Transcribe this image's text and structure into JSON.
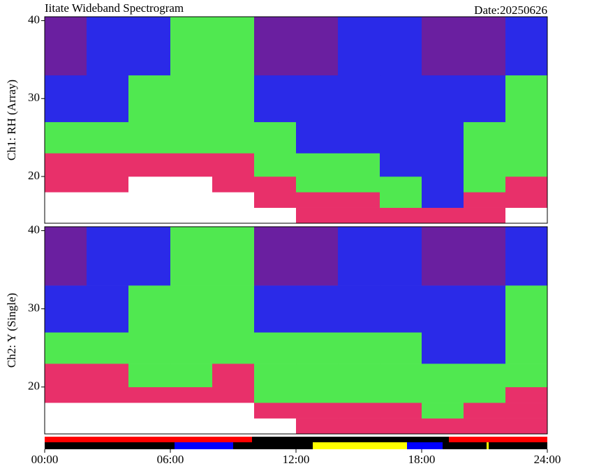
{
  "chart_data": [
    {
      "type": "heatmap",
      "title": "Iitate Wideband Spectrogram",
      "date": "Date:20250626",
      "ylabel": "Ch1: RH (Array)",
      "xlim": [
        0,
        24
      ],
      "ylim": [
        14,
        40.5
      ],
      "yticks": [
        20,
        30,
        40
      ],
      "palette": [
        "#6a1fa0",
        "#2a2ae8",
        "#50e850",
        "#e8306a",
        "#ffffff"
      ],
      "x_edges": [
        0,
        2,
        4,
        6,
        8,
        10,
        12,
        14,
        16,
        18,
        20,
        22,
        24
      ],
      "y_edges": [
        14,
        16,
        18,
        20,
        23,
        27,
        33,
        40.5
      ],
      "levels": [
        [
          4,
          4,
          4,
          4,
          4,
          4,
          3,
          3,
          3,
          3,
          3,
          4
        ],
        [
          4,
          4,
          4,
          4,
          4,
          3,
          3,
          3,
          2,
          1,
          3,
          3
        ],
        [
          3,
          3,
          4,
          4,
          3,
          3,
          2,
          2,
          2,
          1,
          2,
          3
        ],
        [
          3,
          3,
          3,
          3,
          3,
          2,
          2,
          2,
          1,
          1,
          2,
          2
        ],
        [
          2,
          2,
          2,
          2,
          2,
          2,
          1,
          1,
          1,
          1,
          2,
          2
        ],
        [
          1,
          1,
          2,
          2,
          2,
          1,
          1,
          1,
          1,
          1,
          1,
          2
        ],
        [
          0,
          1,
          1,
          2,
          2,
          0,
          0,
          1,
          1,
          0,
          0,
          1
        ]
      ]
    },
    {
      "type": "heatmap",
      "ylabel": "Ch2: Y (Single)",
      "xlim": [
        0,
        24
      ],
      "ylim": [
        14,
        40.5
      ],
      "yticks": [
        20,
        30,
        40
      ],
      "palette": [
        "#6a1fa0",
        "#2a2ae8",
        "#50e850",
        "#e8306a",
        "#ffffff"
      ],
      "x_edges": [
        0,
        2,
        4,
        6,
        8,
        10,
        12,
        14,
        16,
        18,
        20,
        22,
        24
      ],
      "y_edges": [
        14,
        16,
        18,
        20,
        23,
        27,
        33,
        40.5
      ],
      "levels": [
        [
          4,
          4,
          4,
          4,
          4,
          4,
          3,
          3,
          3,
          3,
          3,
          3
        ],
        [
          4,
          4,
          4,
          4,
          4,
          3,
          3,
          3,
          3,
          2,
          3,
          3
        ],
        [
          3,
          3,
          3,
          3,
          3,
          2,
          2,
          2,
          2,
          2,
          2,
          3
        ],
        [
          3,
          3,
          2,
          2,
          3,
          2,
          2,
          2,
          2,
          2,
          2,
          2
        ],
        [
          2,
          2,
          2,
          2,
          2,
          2,
          2,
          2,
          2,
          1,
          1,
          2
        ],
        [
          1,
          1,
          2,
          2,
          2,
          1,
          1,
          1,
          1,
          1,
          1,
          2
        ],
        [
          0,
          1,
          1,
          2,
          2,
          0,
          0,
          1,
          1,
          0,
          0,
          1
        ]
      ]
    },
    {
      "type": "timeline",
      "xlim": [
        0,
        24
      ],
      "xticks": [
        {
          "value": 0,
          "label": "00:00"
        },
        {
          "value": 6,
          "label": "06:00"
        },
        {
          "value": 12,
          "label": "12:00"
        },
        {
          "value": 18,
          "label": "18:00"
        },
        {
          "value": 24,
          "label": "24:00"
        }
      ],
      "rows": [
        {
          "segments": [
            {
              "start": 0,
              "end": 9.9,
              "color": "#ff0000"
            },
            {
              "start": 9.9,
              "end": 19.3,
              "color": "#000000"
            },
            {
              "start": 19.3,
              "end": 24,
              "color": "#ff0000"
            }
          ]
        },
        {
          "segments": [
            {
              "start": 0,
              "end": 6.2,
              "color": "#000000"
            },
            {
              "start": 6.2,
              "end": 9.0,
              "color": "#0000ff"
            },
            {
              "start": 9.0,
              "end": 12.8,
              "color": "#000000"
            },
            {
              "start": 12.8,
              "end": 17.3,
              "color": "#ffff00"
            },
            {
              "start": 17.3,
              "end": 19.0,
              "color": "#0000ff"
            },
            {
              "start": 19.0,
              "end": 21.1,
              "color": "#000000"
            },
            {
              "start": 21.1,
              "end": 21.2,
              "color": "#ffff00"
            },
            {
              "start": 21.2,
              "end": 24,
              "color": "#000000"
            }
          ]
        }
      ]
    }
  ]
}
